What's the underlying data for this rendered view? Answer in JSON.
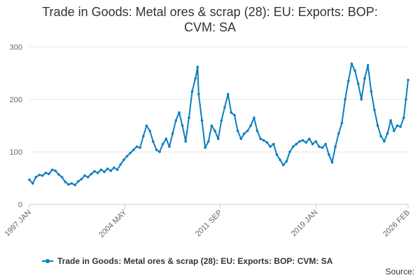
{
  "title_lines": [
    "Trade in Goods: Metal ores & scrap (28): EU: Exports: BOP:",
    "CVM: SA"
  ],
  "source_label": "Source:",
  "colors": {
    "series": "#0b7fc0",
    "grid": "#e6e6e6",
    "axis": "#cccccc",
    "text": "#666666"
  },
  "chart_data": {
    "type": "line",
    "title": "Trade in Goods: Metal ores & scrap (28): EU: Exports: BOP: CVM: SA",
    "xlabel": "",
    "ylabel": "",
    "x_range": [
      "1997-01",
      "2026-02"
    ],
    "ylim": [
      0,
      300
    ],
    "y_ticks": [
      0,
      100,
      200,
      300
    ],
    "x_ticks": [
      "1997 JAN",
      "2004 MAY",
      "2011 SEP",
      "2019 JAN",
      "2026 FEB"
    ],
    "grid": true,
    "legend_position": "bottom",
    "series": [
      {
        "name": "Trade in Goods: Metal ores & scrap (28): EU: Exports: BOP: CVM: SA",
        "points": [
          [
            "1997-01",
            47
          ],
          [
            "1997-04",
            40
          ],
          [
            "1997-07",
            52
          ],
          [
            "1997-10",
            56
          ],
          [
            "1998-01",
            55
          ],
          [
            "1998-04",
            60
          ],
          [
            "1998-07",
            58
          ],
          [
            "1998-10",
            66
          ],
          [
            "1999-01",
            64
          ],
          [
            "1999-04",
            57
          ],
          [
            "1999-07",
            52
          ],
          [
            "1999-10",
            43
          ],
          [
            "2000-01",
            38
          ],
          [
            "2000-04",
            40
          ],
          [
            "2000-07",
            37
          ],
          [
            "2000-10",
            44
          ],
          [
            "2001-01",
            48
          ],
          [
            "2001-04",
            55
          ],
          [
            "2001-07",
            52
          ],
          [
            "2001-10",
            58
          ],
          [
            "2002-01",
            63
          ],
          [
            "2002-04",
            60
          ],
          [
            "2002-07",
            66
          ],
          [
            "2002-10",
            62
          ],
          [
            "2003-01",
            68
          ],
          [
            "2003-04",
            64
          ],
          [
            "2003-07",
            70
          ],
          [
            "2003-10",
            66
          ],
          [
            "2004-01",
            76
          ],
          [
            "2004-04",
            85
          ],
          [
            "2004-07",
            92
          ],
          [
            "2004-10",
            98
          ],
          [
            "2005-01",
            104
          ],
          [
            "2005-04",
            110
          ],
          [
            "2005-07",
            108
          ],
          [
            "2005-10",
            130
          ],
          [
            "2006-01",
            150
          ],
          [
            "2006-04",
            140
          ],
          [
            "2006-07",
            120
          ],
          [
            "2006-10",
            104
          ],
          [
            "2007-01",
            100
          ],
          [
            "2007-04",
            115
          ],
          [
            "2007-07",
            125
          ],
          [
            "2007-10",
            110
          ],
          [
            "2008-01",
            135
          ],
          [
            "2008-04",
            160
          ],
          [
            "2008-07",
            175
          ],
          [
            "2008-10",
            150
          ],
          [
            "2009-01",
            120
          ],
          [
            "2009-04",
            165
          ],
          [
            "2009-07",
            215
          ],
          [
            "2009-10",
            240
          ],
          [
            "2009-12",
            262
          ],
          [
            "2010-01",
            210
          ],
          [
            "2010-04",
            160
          ],
          [
            "2010-07",
            108
          ],
          [
            "2010-10",
            120
          ],
          [
            "2011-01",
            150
          ],
          [
            "2011-04",
            140
          ],
          [
            "2011-07",
            125
          ],
          [
            "2011-10",
            160
          ],
          [
            "2012-01",
            185
          ],
          [
            "2012-04",
            210
          ],
          [
            "2012-07",
            175
          ],
          [
            "2012-10",
            170
          ],
          [
            "2013-01",
            140
          ],
          [
            "2013-04",
            125
          ],
          [
            "2013-07",
            135
          ],
          [
            "2013-10",
            140
          ],
          [
            "2014-01",
            150
          ],
          [
            "2014-04",
            165
          ],
          [
            "2014-07",
            140
          ],
          [
            "2014-10",
            125
          ],
          [
            "2015-01",
            122
          ],
          [
            "2015-04",
            118
          ],
          [
            "2015-07",
            110
          ],
          [
            "2015-10",
            115
          ],
          [
            "2016-01",
            95
          ],
          [
            "2016-04",
            85
          ],
          [
            "2016-07",
            75
          ],
          [
            "2016-10",
            82
          ],
          [
            "2017-01",
            100
          ],
          [
            "2017-04",
            110
          ],
          [
            "2017-07",
            115
          ],
          [
            "2017-10",
            120
          ],
          [
            "2018-01",
            122
          ],
          [
            "2018-04",
            118
          ],
          [
            "2018-07",
            125
          ],
          [
            "2018-10",
            115
          ],
          [
            "2019-01",
            120
          ],
          [
            "2019-04",
            110
          ],
          [
            "2019-07",
            108
          ],
          [
            "2019-10",
            115
          ],
          [
            "2020-01",
            95
          ],
          [
            "2020-04",
            80
          ],
          [
            "2020-07",
            110
          ],
          [
            "2020-10",
            135
          ],
          [
            "2021-01",
            155
          ],
          [
            "2021-04",
            200
          ],
          [
            "2021-07",
            235
          ],
          [
            "2021-10",
            268
          ],
          [
            "2022-01",
            255
          ],
          [
            "2022-04",
            230
          ],
          [
            "2022-07",
            200
          ],
          [
            "2022-10",
            240
          ],
          [
            "2023-01",
            265
          ],
          [
            "2023-04",
            215
          ],
          [
            "2023-07",
            180
          ],
          [
            "2023-10",
            150
          ],
          [
            "2024-01",
            130
          ],
          [
            "2024-04",
            120
          ],
          [
            "2024-07",
            135
          ],
          [
            "2024-10",
            160
          ],
          [
            "2025-01",
            140
          ],
          [
            "2025-04",
            150
          ],
          [
            "2025-07",
            148
          ],
          [
            "2025-10",
            165
          ],
          [
            "2025-12",
            200
          ],
          [
            "2026-02",
            237
          ]
        ]
      }
    ]
  }
}
